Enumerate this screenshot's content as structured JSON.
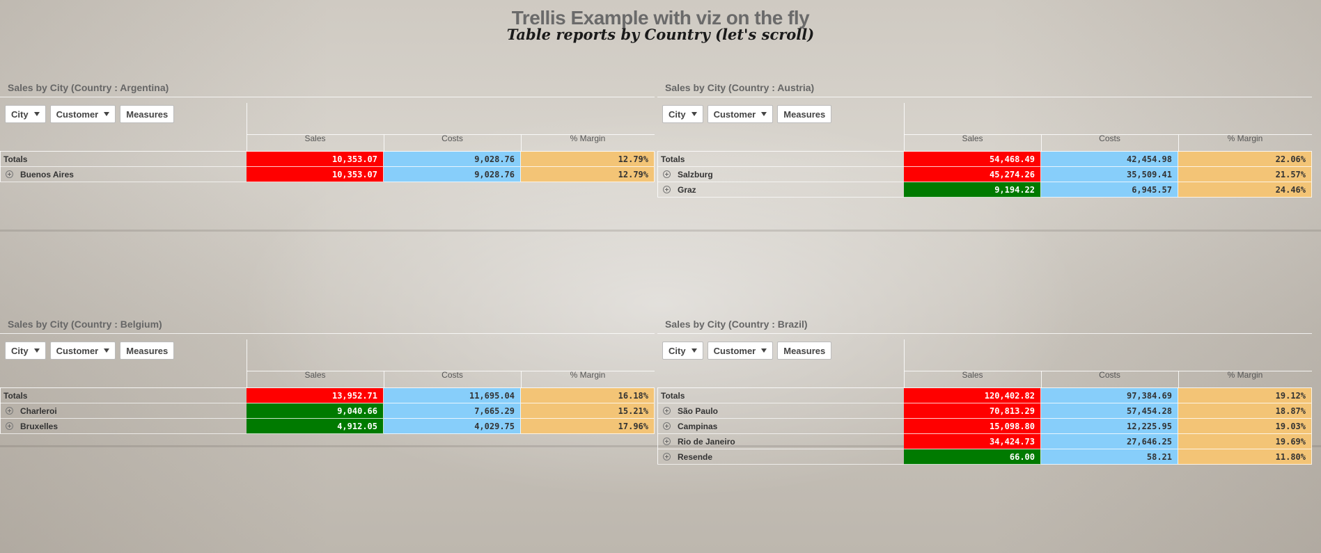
{
  "title": "Trellis Example with viz on the fly",
  "subtitle": "Table reports by Country (let's scroll)",
  "colors": {
    "sales_red": "#ff0000",
    "sales_green": "#007a00",
    "costs_blue": "#87cefa",
    "margin_orange": "#f3c476"
  },
  "controls": {
    "city": "City",
    "customer": "Customer",
    "measures": "Measures"
  },
  "columns": {
    "sales": "Sales",
    "costs": "Costs",
    "margin": "% Margin"
  },
  "panels": [
    {
      "title": "Sales by City (Country : Argentina)",
      "totals": {
        "label": "Totals",
        "sales": "10,353.07",
        "costs": "9,028.76",
        "margin": "12.79%",
        "sales_color": "red"
      },
      "rows": [
        {
          "label": "Buenos Aires",
          "sales": "10,353.07",
          "costs": "9,028.76",
          "margin": "12.79%",
          "sales_color": "red"
        }
      ]
    },
    {
      "title": "Sales by City (Country : Austria)",
      "totals": {
        "label": "Totals",
        "sales": "54,468.49",
        "costs": "42,454.98",
        "margin": "22.06%",
        "sales_color": "red"
      },
      "rows": [
        {
          "label": "Salzburg",
          "sales": "45,274.26",
          "costs": "35,509.41",
          "margin": "21.57%",
          "sales_color": "red"
        },
        {
          "label": "Graz",
          "sales": "9,194.22",
          "costs": "6,945.57",
          "margin": "24.46%",
          "sales_color": "green"
        }
      ]
    },
    {
      "title": "Sales by City (Country : Belgium)",
      "totals": {
        "label": "Totals",
        "sales": "13,952.71",
        "costs": "11,695.04",
        "margin": "16.18%",
        "sales_color": "red"
      },
      "rows": [
        {
          "label": "Charleroi",
          "sales": "9,040.66",
          "costs": "7,665.29",
          "margin": "15.21%",
          "sales_color": "green"
        },
        {
          "label": "Bruxelles",
          "sales": "4,912.05",
          "costs": "4,029.75",
          "margin": "17.96%",
          "sales_color": "green"
        }
      ]
    },
    {
      "title": "Sales by City (Country : Brazil)",
      "totals": {
        "label": "Totals",
        "sales": "120,402.82",
        "costs": "97,384.69",
        "margin": "19.12%",
        "sales_color": "red"
      },
      "rows": [
        {
          "label": "São Paulo",
          "sales": "70,813.29",
          "costs": "57,454.28",
          "margin": "18.87%",
          "sales_color": "red"
        },
        {
          "label": "Campinas",
          "sales": "15,098.80",
          "costs": "12,225.95",
          "margin": "19.03%",
          "sales_color": "red"
        },
        {
          "label": "Rio de Janeiro",
          "sales": "34,424.73",
          "costs": "27,646.25",
          "margin": "19.69%",
          "sales_color": "red"
        },
        {
          "label": "Resende",
          "sales": "66.00",
          "costs": "58.21",
          "margin": "11.80%",
          "sales_color": "green"
        }
      ]
    }
  ]
}
